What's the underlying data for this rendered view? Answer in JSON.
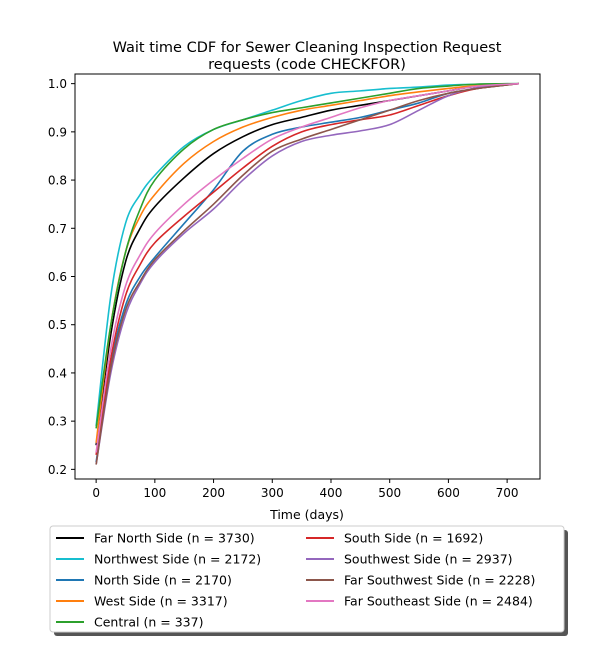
{
  "chart_data": {
    "type": "line",
    "title": "Wait time CDF for Sewer Cleaning Inspection Request\nrequests (code CHECKFOR)",
    "xlabel": "Time (days)",
    "ylabel": "",
    "xlim": [
      -36,
      756
    ],
    "ylim": [
      0.18,
      1.02
    ],
    "xticks": [
      0,
      100,
      200,
      300,
      400,
      500,
      600,
      700
    ],
    "yticks": [
      0.2,
      0.3,
      0.4,
      0.5,
      0.6,
      0.7,
      0.8,
      0.9,
      1.0
    ],
    "grid": false,
    "legend_position": "below plot, two columns, with shadow",
    "series": [
      {
        "name": "Far North Side (n = 3730)",
        "color": "#000000",
        "x": [
          0,
          25,
          50,
          75,
          100,
          150,
          200,
          250,
          300,
          350,
          400,
          450,
          500,
          550,
          600,
          650,
          720
        ],
        "values": [
          0.25,
          0.48,
          0.63,
          0.7,
          0.745,
          0.805,
          0.855,
          0.89,
          0.915,
          0.93,
          0.945,
          0.955,
          0.965,
          0.975,
          0.985,
          0.995,
          1.0
        ]
      },
      {
        "name": "Northwest Side (n = 2172)",
        "color": "#17becf",
        "x": [
          0,
          25,
          50,
          75,
          100,
          150,
          200,
          250,
          300,
          350,
          400,
          450,
          500,
          550,
          600,
          650,
          720
        ],
        "values": [
          0.29,
          0.56,
          0.71,
          0.77,
          0.81,
          0.87,
          0.905,
          0.925,
          0.945,
          0.965,
          0.98,
          0.985,
          0.99,
          0.993,
          0.997,
          0.999,
          1.0
        ]
      },
      {
        "name": "North Side (n = 2170)",
        "color": "#1f77b4",
        "x": [
          0,
          25,
          50,
          75,
          100,
          150,
          200,
          250,
          300,
          350,
          400,
          450,
          500,
          550,
          600,
          650,
          720
        ],
        "values": [
          0.215,
          0.42,
          0.54,
          0.6,
          0.64,
          0.71,
          0.78,
          0.86,
          0.895,
          0.91,
          0.92,
          0.93,
          0.945,
          0.96,
          0.98,
          0.99,
          1.0
        ]
      },
      {
        "name": "West Side (n = 3317)",
        "color": "#ff7f0e",
        "x": [
          0,
          25,
          50,
          75,
          100,
          150,
          200,
          250,
          300,
          350,
          400,
          450,
          500,
          550,
          600,
          650,
          720
        ],
        "values": [
          0.255,
          0.5,
          0.65,
          0.725,
          0.77,
          0.835,
          0.88,
          0.91,
          0.93,
          0.945,
          0.955,
          0.965,
          0.975,
          0.983,
          0.99,
          0.996,
          1.0
        ]
      },
      {
        "name": "Central (n = 337)",
        "color": "#2ca02c",
        "x": [
          0,
          25,
          50,
          75,
          100,
          150,
          200,
          250,
          300,
          350,
          400,
          450,
          500,
          550,
          600,
          650,
          720
        ],
        "values": [
          0.285,
          0.5,
          0.65,
          0.74,
          0.8,
          0.865,
          0.905,
          0.925,
          0.94,
          0.95,
          0.96,
          0.97,
          0.98,
          0.99,
          0.995,
          0.999,
          1.0
        ]
      },
      {
        "name": "South Side (n = 1692)",
        "color": "#d62728",
        "x": [
          0,
          25,
          50,
          75,
          100,
          150,
          200,
          250,
          300,
          350,
          400,
          450,
          500,
          550,
          600,
          650,
          720
        ],
        "values": [
          0.23,
          0.43,
          0.56,
          0.625,
          0.67,
          0.725,
          0.775,
          0.825,
          0.87,
          0.9,
          0.915,
          0.925,
          0.935,
          0.955,
          0.975,
          0.99,
          1.0
        ]
      },
      {
        "name": "Southwest Side (n = 2937)",
        "color": "#9467bd",
        "x": [
          0,
          25,
          50,
          75,
          100,
          150,
          200,
          250,
          300,
          350,
          400,
          450,
          500,
          550,
          600,
          650,
          720
        ],
        "values": [
          0.21,
          0.4,
          0.52,
          0.585,
          0.63,
          0.69,
          0.74,
          0.8,
          0.85,
          0.88,
          0.893,
          0.902,
          0.915,
          0.945,
          0.975,
          0.992,
          1.0
        ]
      },
      {
        "name": "Far Southwest Side (n = 2228)",
        "color": "#8c564b",
        "x": [
          0,
          25,
          50,
          75,
          100,
          150,
          200,
          250,
          300,
          350,
          400,
          450,
          500,
          550,
          600,
          650,
          720
        ],
        "values": [
          0.21,
          0.41,
          0.53,
          0.59,
          0.635,
          0.695,
          0.75,
          0.81,
          0.86,
          0.885,
          0.905,
          0.925,
          0.945,
          0.965,
          0.98,
          0.99,
          1.0
        ]
      },
      {
        "name": "Far Southeast Side (n = 2484)",
        "color": "#e377c2",
        "x": [
          0,
          25,
          50,
          75,
          100,
          150,
          200,
          250,
          300,
          350,
          400,
          450,
          500,
          550,
          600,
          650,
          720
        ],
        "values": [
          0.235,
          0.45,
          0.58,
          0.645,
          0.69,
          0.75,
          0.8,
          0.845,
          0.885,
          0.91,
          0.93,
          0.95,
          0.965,
          0.975,
          0.985,
          0.995,
          1.0
        ]
      }
    ]
  }
}
